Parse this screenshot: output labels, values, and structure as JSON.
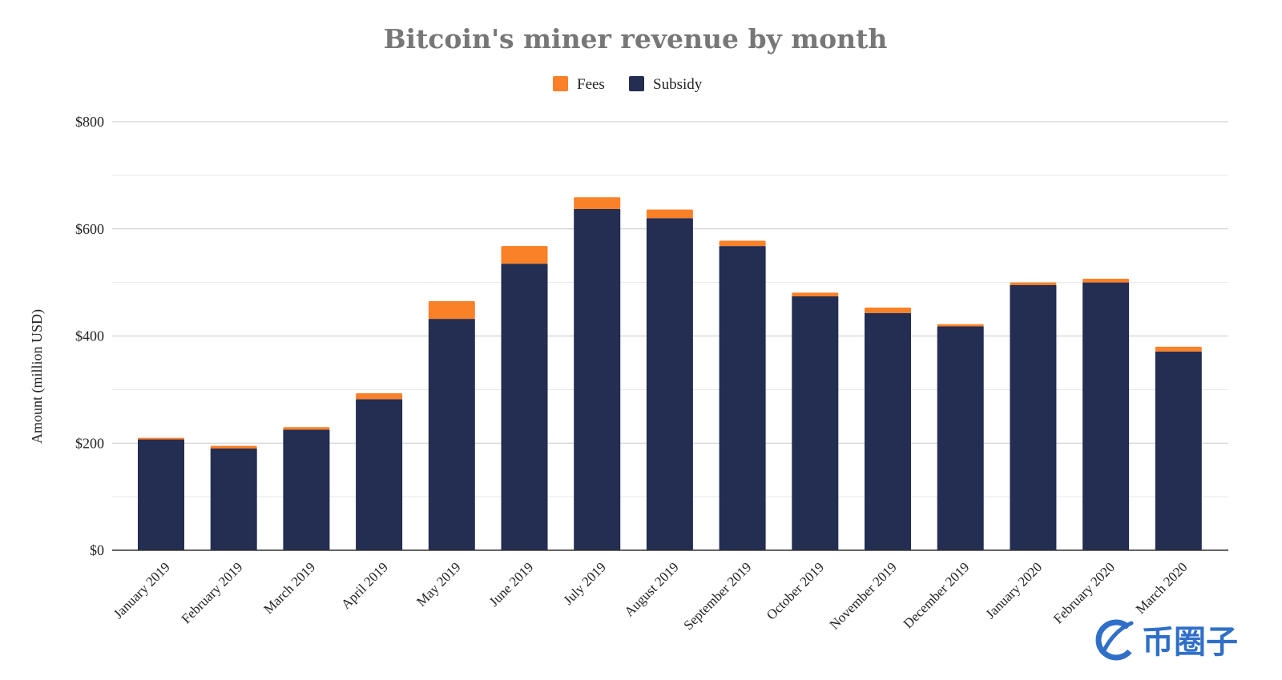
{
  "chart_data": {
    "type": "bar",
    "stacked": true,
    "title": "Bitcoin's miner revenue by month",
    "ylabel": "Amount (million USD)",
    "xlabel": "",
    "ylim": [
      0,
      800
    ],
    "yticks": [
      0,
      200,
      400,
      600,
      800
    ],
    "ytick_labels": [
      "$0",
      "$200",
      "$400",
      "$600",
      "$800"
    ],
    "grid": true,
    "legend_position": "top-center",
    "categories": [
      "January 2019",
      "February 2019",
      "March 2019",
      "April 2019",
      "May 2019",
      "June 2019",
      "July 2019",
      "August 2019",
      "September 2019",
      "October 2019",
      "November 2019",
      "December 2019",
      "January 2020",
      "February 2020",
      "March 2020"
    ],
    "series": [
      {
        "name": "Subsidy",
        "color": "#242d52",
        "values": [
          207,
          190,
          225,
          282,
          432,
          535,
          637,
          620,
          568,
          474,
          443,
          418,
          495,
          500,
          371
        ]
      },
      {
        "name": "Fees",
        "color": "#fa8128",
        "values": [
          3,
          5,
          5,
          11,
          33,
          33,
          22,
          16,
          10,
          7,
          10,
          4,
          5,
          7,
          9
        ]
      }
    ],
    "legend_order": [
      "Fees",
      "Subsidy"
    ]
  },
  "watermark": {
    "text": "币圈子",
    "icon": "coin-logo-icon",
    "color": "#2f6fc8"
  }
}
